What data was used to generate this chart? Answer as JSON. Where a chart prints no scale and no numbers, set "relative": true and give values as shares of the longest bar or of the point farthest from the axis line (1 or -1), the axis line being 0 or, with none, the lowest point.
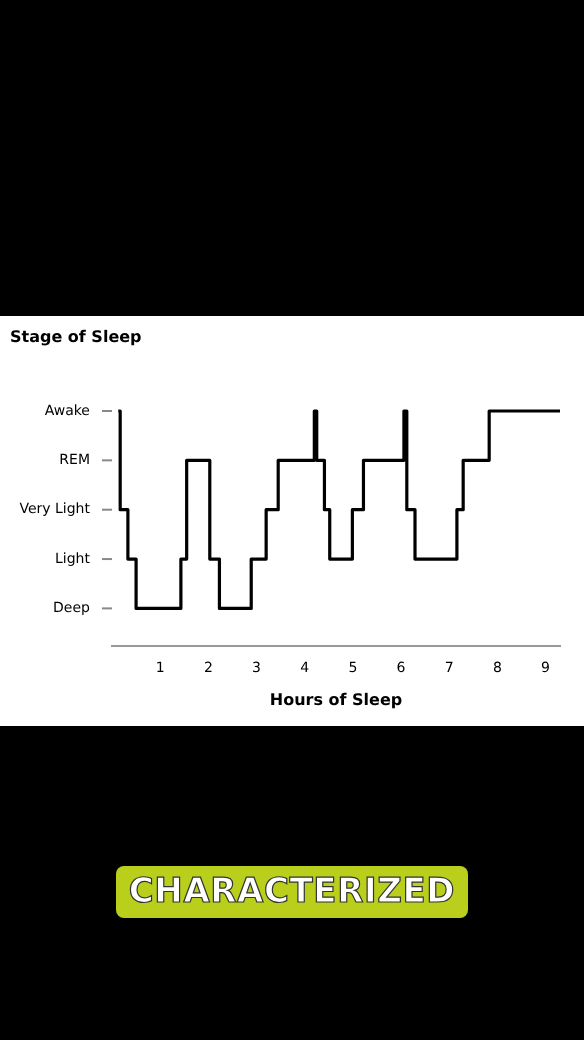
{
  "chart_data": {
    "type": "step",
    "ylabel": "Stage of Sleep",
    "xlabel": "Hours of Sleep",
    "x": [
      0.13,
      0.17,
      0.33,
      0.5,
      1.43,
      1.55,
      2.03,
      2.23,
      2.89,
      3.2,
      3.45,
      4.2,
      4.25,
      4.41,
      4.52,
      4.99,
      5.22,
      6.06,
      6.12,
      6.29,
      7.16,
      7.29,
      7.83,
      9.3
    ],
    "relative": true,
    "series": [
      {
        "color": "#000000",
        "values": [
          1,
          0.58,
          0.37,
          0.16,
          0.37,
          0.79,
          0.37,
          0.16,
          0.37,
          0.58,
          0.79,
          1,
          0.79,
          0.58,
          0.37,
          0.58,
          0.79,
          1,
          0.58,
          0.37,
          0.58,
          0.79,
          1,
          1
        ]
      }
    ],
    "xlim": [
      0,
      9.3
    ],
    "xticks": [
      1,
      2,
      3,
      4,
      5,
      6,
      7,
      8,
      9
    ],
    "grid": false,
    "legend": false,
    "marker": "none",
    "line_style": "solid",
    "annotations": [
      "Deep",
      "Light",
      "Very Light",
      "REM",
      "Awake",
      "CHARACTERIZED"
    ]
  }
}
